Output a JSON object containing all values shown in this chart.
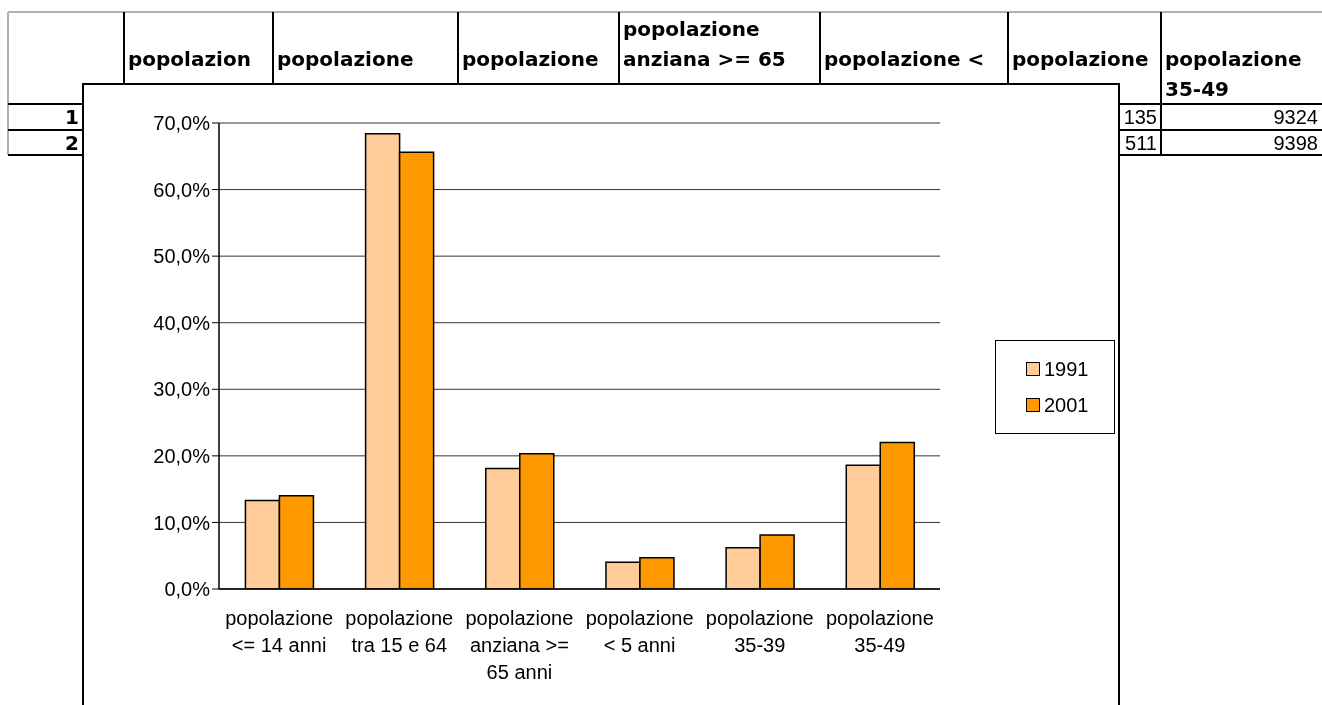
{
  "chart_data": {
    "type": "bar",
    "categories": [
      "popolazione <= 14 anni",
      "popolazione tra 15 e 64",
      "popolazione anziana >= 65 anni",
      "popolazione < 5 anni",
      "popolazione 35-39",
      "popolazione 35-49"
    ],
    "series": [
      {
        "name": "1991",
        "color": "#ffcc99",
        "values": [
          13.3,
          68.4,
          18.1,
          4.0,
          6.2,
          18.6
        ]
      },
      {
        "name": "2001",
        "color": "#ff9900",
        "values": [
          14.0,
          65.6,
          20.3,
          4.7,
          8.1,
          22.0
        ]
      }
    ],
    "ylim": [
      0,
      70
    ],
    "yticks": [
      {
        "value": 0,
        "label": "0,0%"
      },
      {
        "value": 10,
        "label": "10,0%"
      },
      {
        "value": 20,
        "label": "20,0%"
      },
      {
        "value": 30,
        "label": "30,0%"
      },
      {
        "value": 40,
        "label": "40,0%"
      },
      {
        "value": 50,
        "label": "50,0%"
      },
      {
        "value": 60,
        "label": "60,0%"
      },
      {
        "value": 70,
        "label": "70,0%"
      }
    ],
    "grid": "y",
    "legend": "right",
    "annotations": [
      "popolazion",
      "popolazione",
      "popolazione",
      "popolazione anziana >= 65",
      "popolazione <",
      "popolazione",
      "popolazione 35-49",
      "1",
      "2",
      "135",
      "9324",
      "511",
      "9398"
    ]
  }
}
